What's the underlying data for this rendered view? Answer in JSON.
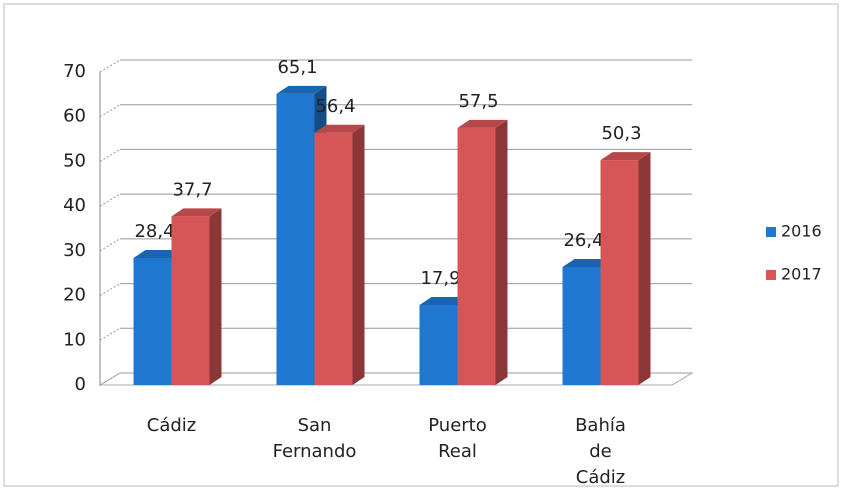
{
  "chart_data": {
    "type": "bar3d",
    "categories": [
      "Cádiz",
      "San Fernando",
      "Puerto Real",
      "Bahía de Cádiz"
    ],
    "series": [
      {
        "name": "2016",
        "color": "#1f77cf",
        "values": [
          28.4,
          65.1,
          17.9,
          26.4
        ],
        "value_labels": [
          "28,4",
          "65,1",
          "17,9",
          "26,4"
        ]
      },
      {
        "name": "2017",
        "color": "#d65556",
        "values": [
          37.7,
          56.4,
          57.5,
          50.3
        ],
        "value_labels": [
          "37,7",
          "56,4",
          "57,5",
          "50,3"
        ]
      }
    ],
    "ylim": [
      0,
      70
    ],
    "yticks": [
      0,
      10,
      20,
      30,
      40,
      50,
      60,
      70
    ],
    "grid": true,
    "legend": "right"
  }
}
